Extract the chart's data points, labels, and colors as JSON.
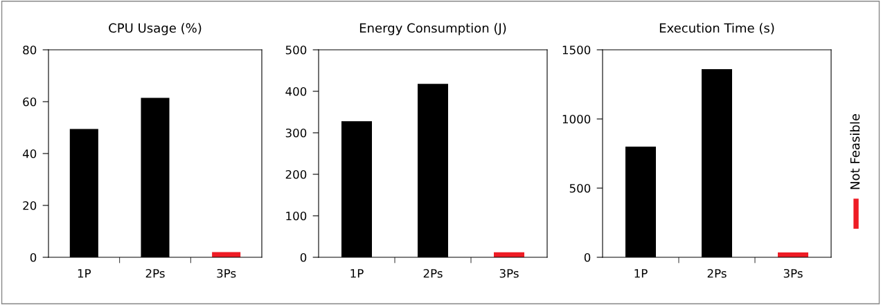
{
  "chart_data": [
    {
      "type": "bar",
      "title": "CPU Usage (%)",
      "categories": [
        "1P",
        "2Ps",
        "3Ps"
      ],
      "ylim": [
        0,
        80
      ],
      "yticks": [
        0,
        20,
        40,
        60,
        80
      ],
      "grid": false,
      "values": [
        49.5,
        61.5,
        2
      ],
      "colors": [
        "#000000",
        "#000000",
        "#ee1c25"
      ]
    },
    {
      "type": "bar",
      "title": "Energy Consumption (J)",
      "categories": [
        "1P",
        "2Ps",
        "3Ps"
      ],
      "ylim": [
        0,
        500
      ],
      "yticks": [
        0,
        100,
        200,
        300,
        400,
        500
      ],
      "grid": false,
      "values": [
        328,
        418,
        12
      ],
      "colors": [
        "#000000",
        "#000000",
        "#ee1c25"
      ]
    },
    {
      "type": "bar",
      "title": "Execution Time (s)",
      "categories": [
        "1P",
        "2Ps",
        "3Ps"
      ],
      "ylim": [
        0,
        1500
      ],
      "yticks": [
        0,
        500,
        1000,
        1500
      ],
      "grid": false,
      "values": [
        800,
        1360,
        35
      ],
      "colors": [
        "#000000",
        "#000000",
        "#ee1c25"
      ],
      "annotations": [
        "Not Feasible"
      ]
    }
  ]
}
